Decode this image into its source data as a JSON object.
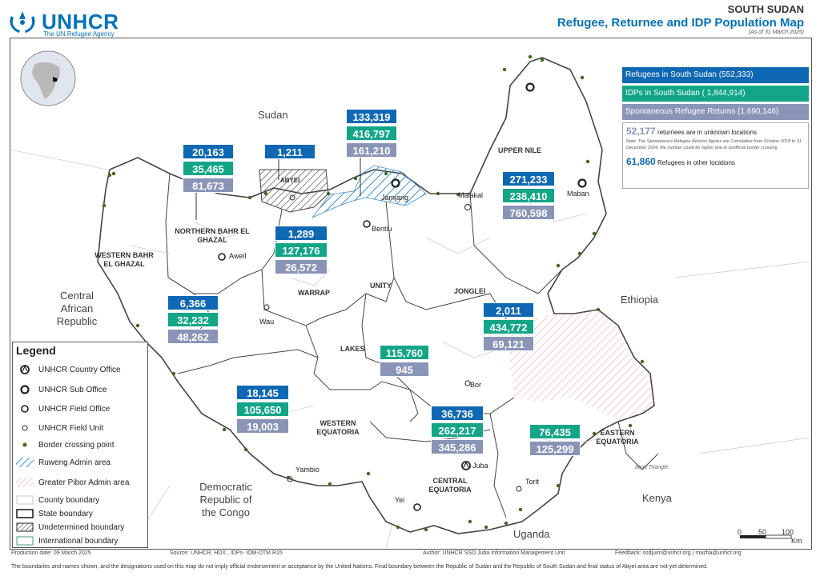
{
  "header": {
    "org": "UNHCR",
    "tagline": "The UN Refugee Agency",
    "country": "SOUTH SUDAN",
    "title": "Refugee, Returnee and IDP Population Map",
    "as_of": "(As of 31 March 2025)"
  },
  "summary": {
    "refugees": "Refugees in South Sudan  (552,333)",
    "idps": "IDPs in South Sudan    ( 1,844,914)",
    "returns": "Spontaneous Refugee Returns (1,690,146)",
    "unknown_value": "52,177",
    "unknown_text": "returnees are in unknown locations",
    "note": "Note: The Spontaneous Refugee Returns figures are Cumulative from October 2018 to 31 December 2024, the number could be higher due to unofficial border crossing",
    "other_value": "61,860",
    "other_text": "Refugees in other locations"
  },
  "countries": {
    "sudan": "Sudan",
    "car": "Central African Republic",
    "ethiopia": "Ethiopia",
    "drc": "Democratic Republic of the Congo",
    "uganda": "Uganda",
    "kenya": "Kenya"
  },
  "states": {
    "upper_nile": "UPPER NILE",
    "nbeg": "NORTHERN BAHR EL GHAZAL",
    "wbeg": "WESTERN BAHR EL GHAZAL",
    "warrap": "WARRAP",
    "unity": "UNITY",
    "jonglei": "JONGLEI",
    "lakes": "LAKES",
    "weq": "WESTERN EQUATORIA",
    "ceq": "CENTRAL EQUATORIA",
    "eeq": "EASTERN EQUATORIA",
    "abyei": "ABYEI",
    "ilemi": "Ilemi Triangle"
  },
  "cities": {
    "jamjang": "Jamjang",
    "bentiu": "Bentiu",
    "malakal": "Malakal",
    "maban": "Maban",
    "aweil": "Aweil",
    "wau": "Wau",
    "bor": "Bor",
    "juba": "Juba",
    "yambio": "Yambio",
    "yei": "Yei",
    "torit": "Torit"
  },
  "figures": {
    "nbeg": {
      "ref": "20,163",
      "idp": "35,465",
      "ret": "81,673"
    },
    "abyei": {
      "ref": "1,211"
    },
    "unity": {
      "ref": "133,319",
      "idp": "416,797",
      "ret": "161,210"
    },
    "upper_nile": {
      "ref": "271,233",
      "idp": "238,410",
      "ret": "760,598"
    },
    "warrap": {
      "ref": "1,289",
      "idp": "127,176",
      "ret": "26,572"
    },
    "wbeg": {
      "ref": "6,366",
      "idp": "32,232",
      "ret": "48,262"
    },
    "jonglei": {
      "ref": "2,011",
      "idp": "434,772",
      "ret": "69,121"
    },
    "lakes": {
      "idp": "115,760",
      "ret": "945"
    },
    "weq": {
      "ref": "18,145",
      "idp": "105,650",
      "ret": "19,003"
    },
    "ceq": {
      "ref": "36,736",
      "idp": "262,217",
      "ret": "345,286"
    },
    "eeq": {
      "idp": "76,435",
      "ret": "125,299"
    }
  },
  "legend": {
    "title": "Legend",
    "items": [
      "UNHCR Country Office",
      "UNHCR Sub Office",
      "UNHCR Field Office",
      "UNHCR Field Unit",
      "Border crossing point",
      "Ruweng Admin area",
      "Greater Pibor Admin area",
      "County boundary",
      "State boundary",
      "Undetermined boundary",
      "International boundary"
    ]
  },
  "scale": {
    "t0": "0",
    "t1": "50",
    "t2": "100",
    "unit": "Km"
  },
  "footer": {
    "production": "Production date: 09 March 2025",
    "source": "Source: UNHCR, HDX , IDPs- IOM-DTM R15",
    "author": "Author: UNHCR SSD Juba Information Management Unit",
    "feedback": "Feedback: ssdjuim@unhcr.org | mazha@unhcr.org",
    "disclaimer": "The boundaries and names shown, and the designations used on this map do not imply official endorsement or acceptance by the United Nations. Final boundary between the Republic of Sudan and the Republic of South Sudan and final status of Abyei area are not yet determined."
  },
  "colors": {
    "unhcr_blue": "#0072bc",
    "refugee": "#0f68b4",
    "idp": "#12a587",
    "returns": "#8a94b7",
    "border_point": "#3d6b1f"
  }
}
